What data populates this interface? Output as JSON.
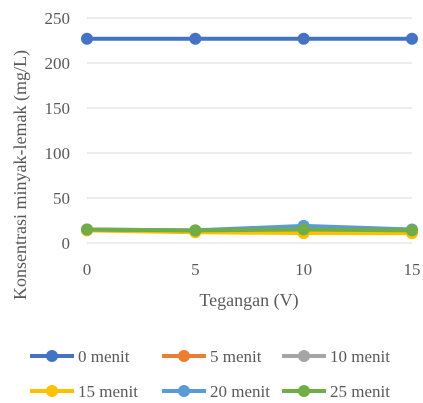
{
  "chart_data": {
    "type": "line",
    "xlabel": "Tegangan (V)",
    "ylabel": "Konsentrasi minyak-lemak (mg/L)",
    "x": [
      0,
      5,
      10,
      15
    ],
    "xlim": [
      0,
      15
    ],
    "ylim": [
      0,
      250
    ],
    "x_ticks": [
      "0",
      "5",
      "10",
      "15"
    ],
    "y_ticks": [
      "0",
      "50",
      "100",
      "150",
      "200",
      "250"
    ],
    "grid": true,
    "legend_position": "bottom",
    "series": [
      {
        "name": "0 menit",
        "color": "#4472C4",
        "values": [
          227,
          227,
          227,
          227
        ]
      },
      {
        "name": "5 menit",
        "color": "#ED7D31",
        "values": [
          15,
          13,
          13,
          12
        ]
      },
      {
        "name": "10 menit",
        "color": "#A5A5A5",
        "values": [
          15,
          13,
          13,
          12
        ]
      },
      {
        "name": "15 menit",
        "color": "#FFC000",
        "values": [
          14,
          12,
          11,
          11
        ]
      },
      {
        "name": "20 menit",
        "color": "#5B9BD5",
        "values": [
          15,
          14,
          19,
          15
        ]
      },
      {
        "name": "25 menit",
        "color": "#70AD47",
        "values": [
          15,
          14,
          15,
          14
        ]
      }
    ]
  }
}
